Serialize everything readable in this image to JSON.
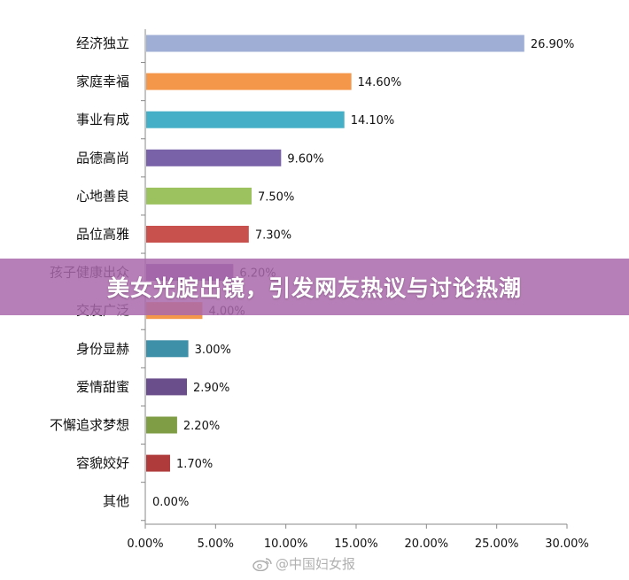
{
  "banner": {
    "title": "美女光腚出镜，引发网友热议与讨论热潮"
  },
  "watermark": {
    "text": "@中国妇女报",
    "icon": "weibo-icon"
  },
  "chart_data": {
    "type": "bar",
    "orientation": "horizontal",
    "title": "",
    "xlabel": "",
    "ylabel": "",
    "xlim": [
      0,
      30
    ],
    "x_ticks": [
      "0.00%",
      "5.00%",
      "10.00%",
      "15.00%",
      "20.00%",
      "25.00%",
      "30.00%"
    ],
    "grid": false,
    "legend": "none",
    "categories": [
      "经济独立",
      "家庭幸福",
      "事业有成",
      "品德高尚",
      "心地善良",
      "品位高雅",
      "孩子健康出众",
      "交友广泛",
      "身份显赫",
      "爱情甜蜜",
      "不懈追求梦想",
      "容貌姣好",
      "其他"
    ],
    "values": [
      26.9,
      14.6,
      14.1,
      9.6,
      7.5,
      7.3,
      6.2,
      4.0,
      3.0,
      2.9,
      2.2,
      1.7,
      0.0
    ],
    "value_labels": [
      "26.90%",
      "14.60%",
      "14.10%",
      "9.60%",
      "7.50%",
      "7.30%",
      "6.20%",
      "4.00%",
      "3.00%",
      "2.90%",
      "2.20%",
      "1.70%",
      "0.00%"
    ],
    "colors": [
      "#9eaed4",
      "#f5974a",
      "#44afc6",
      "#7a62a8",
      "#9cc260",
      "#c9514d",
      "#7a62a8",
      "#f5974a",
      "#3e8fa8",
      "#6a4e8c",
      "#7e9d45",
      "#b03b3b",
      "#9eaed4"
    ]
  }
}
